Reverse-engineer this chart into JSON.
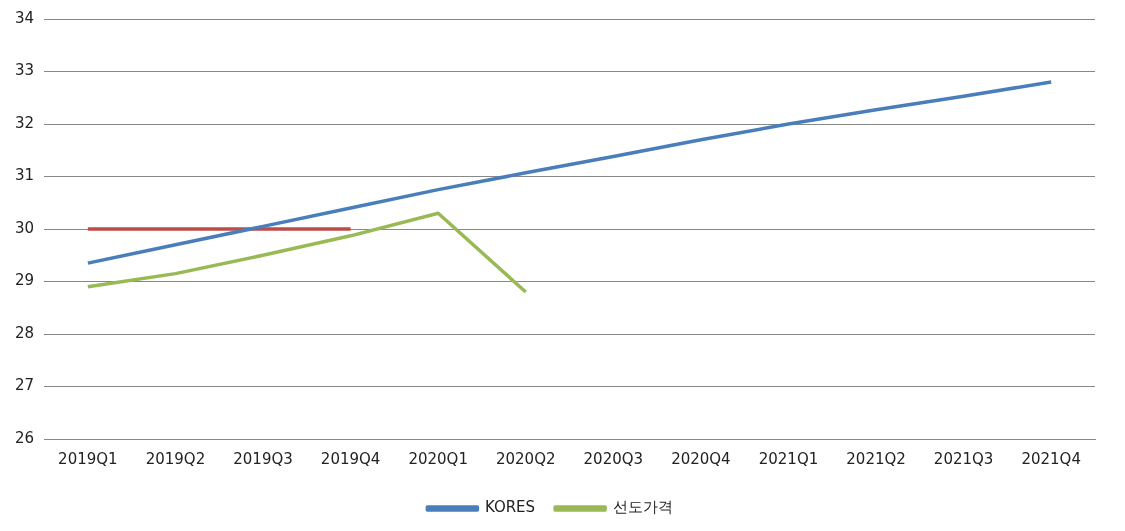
{
  "chart_data": {
    "type": "line",
    "categories": [
      "2019Q1",
      "2019Q2",
      "2019Q3",
      "2019Q4",
      "2020Q1",
      "2020Q2",
      "2020Q3",
      "2020Q4",
      "2021Q1",
      "2021Q2",
      "2021Q3",
      "2021Q4"
    ],
    "series": [
      {
        "name": "KORES",
        "color": "#4a7ebb",
        "values": [
          29.35,
          29.7,
          30.05,
          30.4,
          30.75,
          31.07,
          31.38,
          31.7,
          32.0,
          32.27,
          32.53,
          32.8
        ]
      },
      {
        "color": "#be4b48",
        "values": [
          30,
          30,
          30,
          30,
          null,
          null,
          null,
          null,
          null,
          null,
          null,
          null
        ]
      },
      {
        "name": "선도가격",
        "color": "#98b954",
        "values": [
          28.9,
          29.15,
          29.5,
          29.87,
          30.3,
          28.8,
          null,
          null,
          null,
          null,
          null,
          null
        ]
      }
    ],
    "ylim": [
      26,
      34
    ],
    "yticks": [
      26,
      27,
      28,
      29,
      30,
      31,
      32,
      33,
      34
    ],
    "grid": "y",
    "legend": "bottom",
    "marker": "none",
    "line_style": "solid"
  }
}
